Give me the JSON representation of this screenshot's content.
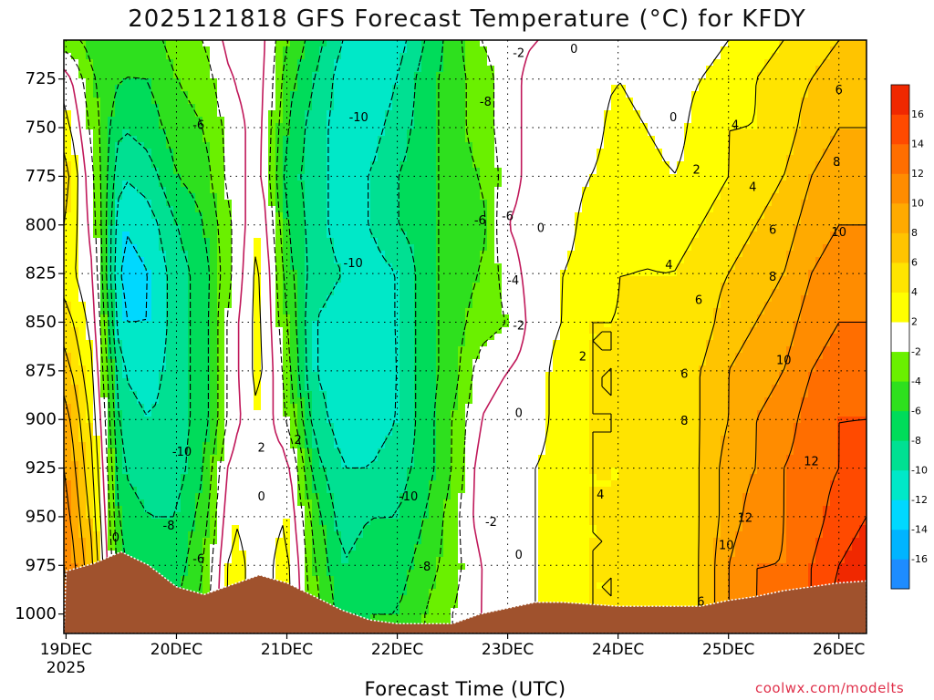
{
  "page": {
    "title": "2025121818 GFS Forecast Temperature (°C) for KFDY",
    "xlabel": "Forecast Time (UTC)",
    "credit": "coolwx.com/modelts"
  },
  "chart_data": {
    "type": "heatmap",
    "title": "2025121818 GFS Forecast Temperature (°C) for KFDY",
    "xlabel": "Forecast Time (UTC)",
    "ylabel": "",
    "x_ticks": [
      {
        "label": "19DEC",
        "sub": "2025",
        "day": 0
      },
      {
        "label": "20DEC",
        "sub": "",
        "day": 1
      },
      {
        "label": "21DEC",
        "sub": "",
        "day": 2
      },
      {
        "label": "22DEC",
        "sub": "",
        "day": 3
      },
      {
        "label": "23DEC",
        "sub": "",
        "day": 4
      },
      {
        "label": "24DEC",
        "sub": "",
        "day": 5
      },
      {
        "label": "25DEC",
        "sub": "",
        "day": 6
      },
      {
        "label": "26DEC",
        "sub": "",
        "day": 7
      }
    ],
    "xlim_days": [
      -0.02,
      7.25
    ],
    "y_ticks": [
      725,
      750,
      775,
      800,
      825,
      850,
      875,
      900,
      925,
      950,
      975,
      1000
    ],
    "ylim_hpa": [
      705,
      1010
    ],
    "y_inverted": true,
    "colorbar": {
      "bounds": [
        -18,
        -16,
        -14,
        -12,
        -10,
        -8,
        -6,
        -4,
        -2,
        2,
        4,
        6,
        8,
        10,
        12,
        14,
        16,
        18
      ],
      "tick_labels": [
        "-16",
        "-14",
        "-12",
        "-10",
        "-8",
        "-6",
        "-4",
        "-2",
        "2",
        "4",
        "6",
        "8",
        "10",
        "12",
        "14",
        "16"
      ],
      "colors": [
        "#1e8cff",
        "#00b4ff",
        "#00d8ff",
        "#00e8c8",
        "#00e092",
        "#00dc5a",
        "#2ee01e",
        "#6af000",
        "#ffffff",
        "#ffff00",
        "#ffe400",
        "#ffc400",
        "#ffaa00",
        "#ff8c00",
        "#ff6e00",
        "#ff4a00",
        "#f02800"
      ]
    },
    "ground_color": "#a0522d",
    "times_days": [
      0,
      0.25,
      0.5,
      0.75,
      1,
      1.25,
      1.5,
      1.75,
      2,
      2.25,
      2.5,
      2.75,
      3,
      3.25,
      3.5,
      3.75,
      4,
      4.25,
      4.5,
      4.75,
      5,
      5.25,
      5.5,
      5.75,
      6,
      6.25,
      6.5,
      6.75,
      7,
      7.25
    ],
    "surface_pressure_hpa": [
      978,
      974,
      968,
      975,
      986,
      990,
      985,
      980,
      984,
      991,
      998,
      1003,
      1005,
      1005,
      1005,
      1000,
      997,
      994,
      994,
      995,
      996,
      996,
      996,
      996,
      993,
      991,
      988,
      986,
      984,
      983
    ],
    "levels_hpa": [
      705,
      725,
      750,
      775,
      800,
      825,
      850,
      875,
      900,
      925,
      950,
      975,
      1000
    ],
    "temperature_c": [
      [
        -3,
        1,
        3,
        5,
        4,
        3,
        5,
        7,
        9,
        10,
        11,
        12,
        13
      ],
      [
        -5,
        -4,
        -3,
        -2,
        -1,
        0,
        1,
        2,
        3,
        4,
        5,
        6,
        7
      ],
      [
        -6,
        -6,
        -8,
        -10,
        -12,
        -13,
        -12,
        -10,
        -9,
        -8,
        -7,
        -6,
        -5
      ],
      [
        -5,
        -6,
        -7,
        -9,
        -11,
        -12,
        -12,
        -11,
        -10,
        -9,
        -8,
        -7,
        -6
      ],
      [
        -3,
        -4,
        -5,
        -6,
        -8,
        -9,
        -9,
        -9,
        -9,
        -9,
        -8,
        -7,
        -6
      ],
      [
        -2,
        -3,
        -4,
        -5,
        -6,
        -7,
        -7,
        -7,
        -7,
        -6,
        -5,
        -4,
        -3
      ],
      [
        1,
        0,
        -1,
        -1,
        -2,
        -2,
        -1,
        -1,
        -1,
        1,
        2,
        3,
        3
      ],
      [
        1,
        1,
        1,
        1,
        2,
        3,
        3,
        3,
        2,
        1,
        1,
        1,
        1
      ],
      [
        -4,
        -5,
        -6,
        -7,
        -6,
        -5,
        -4,
        -3,
        -2,
        1,
        2,
        3,
        3
      ],
      [
        -7,
        -8,
        -9,
        -9,
        -9,
        -9,
        -10,
        -10,
        -9,
        -7,
        -5,
        -4,
        -3
      ],
      [
        -10,
        -11,
        -11,
        -11,
        -11,
        -10,
        -11,
        -11,
        -11,
        -10,
        -9,
        -8,
        -7
      ],
      [
        -12,
        -12,
        -11,
        -10,
        -10,
        -11,
        -11,
        -12,
        -11,
        -10,
        -8,
        -7,
        -6
      ],
      [
        -11,
        -10,
        -9,
        -8,
        -8,
        -10,
        -10,
        -10,
        -10,
        -9,
        -8,
        -7,
        -6
      ],
      [
        -8,
        -7,
        -7,
        -7,
        -7,
        -7,
        -7,
        -7,
        -7,
        -7,
        -6,
        -5,
        -4
      ],
      [
        -5,
        -5,
        -5,
        -5,
        -5,
        -5,
        -5,
        -5,
        -4,
        -4,
        -3,
        -3,
        -2
      ],
      [
        -2,
        -3,
        -3,
        -4,
        -5,
        -4,
        -3,
        -1,
        0,
        1,
        1,
        0,
        0
      ],
      [
        -1,
        -1,
        -1,
        -1,
        0,
        -1,
        -2,
        0,
        1,
        1,
        1,
        1,
        1
      ],
      [
        0,
        1,
        1,
        1,
        1,
        1,
        1,
        1,
        1,
        2,
        2,
        2,
        2
      ],
      [
        0,
        1,
        1,
        1,
        1,
        2,
        2,
        3,
        3,
        3,
        3,
        3,
        3
      ],
      [
        1,
        1,
        1,
        2,
        3,
        3,
        4,
        4,
        4,
        4,
        4,
        4,
        4
      ],
      [
        1,
        2,
        3,
        3,
        3,
        4,
        4,
        4,
        4,
        4,
        4,
        4,
        4
      ],
      [
        1,
        1,
        2,
        3,
        4,
        4,
        5,
        5,
        5,
        5,
        5,
        5,
        5
      ],
      [
        1,
        1,
        1,
        2,
        3,
        4,
        5,
        5,
        5,
        5,
        5,
        5,
        5
      ],
      [
        1,
        2,
        3,
        3,
        4,
        5,
        5,
        6,
        6,
        6,
        6,
        6,
        6
      ],
      [
        2,
        3,
        4,
        4,
        5,
        6,
        7,
        8,
        8,
        9,
        9,
        10,
        10
      ],
      [
        3,
        4,
        4,
        5,
        6,
        7,
        8,
        9,
        10,
        10,
        11,
        12,
        12
      ],
      [
        4,
        5,
        5,
        6,
        7,
        8,
        9,
        10,
        11,
        12,
        12,
        12,
        13
      ],
      [
        5,
        6,
        7,
        8,
        9,
        10,
        11,
        12,
        13,
        13,
        13,
        14,
        14
      ],
      [
        6,
        7,
        8,
        9,
        10,
        11,
        12,
        13,
        14,
        14,
        15,
        16,
        17
      ],
      [
        6,
        7,
        8,
        9,
        10,
        11,
        12,
        13,
        14,
        15,
        16,
        17,
        18
      ]
    ],
    "contour_labels": [
      {
        "text": "-2",
        "day": 4.1,
        "hpa": 712
      },
      {
        "text": "0",
        "day": 4.6,
        "hpa": 710
      },
      {
        "text": "-6",
        "day": 1.2,
        "hpa": 749
      },
      {
        "text": "-10",
        "day": 2.65,
        "hpa": 745
      },
      {
        "text": "-8",
        "day": 3.8,
        "hpa": 737
      },
      {
        "text": "0",
        "day": 5.5,
        "hpa": 745
      },
      {
        "text": "4",
        "day": 6.06,
        "hpa": 749
      },
      {
        "text": "6",
        "day": 7.0,
        "hpa": 731
      },
      {
        "text": "2",
        "day": 5.71,
        "hpa": 772
      },
      {
        "text": "4",
        "day": 6.22,
        "hpa": 781
      },
      {
        "text": "8",
        "day": 6.98,
        "hpa": 768
      },
      {
        "text": "-6",
        "day": 3.75,
        "hpa": 798
      },
      {
        "text": "-6",
        "day": 4.0,
        "hpa": 796
      },
      {
        "text": "0",
        "day": 4.3,
        "hpa": 802
      },
      {
        "text": "6",
        "day": 6.4,
        "hpa": 803
      },
      {
        "text": "10",
        "day": 7.0,
        "hpa": 804
      },
      {
        "text": "-10",
        "day": 2.6,
        "hpa": 820
      },
      {
        "text": "4",
        "day": 5.46,
        "hpa": 821
      },
      {
        "text": "8",
        "day": 6.4,
        "hpa": 827
      },
      {
        "text": "-4",
        "day": 4.05,
        "hpa": 829
      },
      {
        "text": "6",
        "day": 5.73,
        "hpa": 839
      },
      {
        "text": "-2",
        "day": 4.1,
        "hpa": 852
      },
      {
        "text": "2",
        "day": 4.68,
        "hpa": 868
      },
      {
        "text": "10",
        "day": 6.5,
        "hpa": 870
      },
      {
        "text": "6",
        "day": 5.6,
        "hpa": 877
      },
      {
        "text": "0",
        "day": 4.1,
        "hpa": 897
      },
      {
        "text": "8",
        "day": 5.6,
        "hpa": 901
      },
      {
        "text": "-10",
        "day": 1.05,
        "hpa": 917
      },
      {
        "text": "2",
        "day": 1.77,
        "hpa": 915
      },
      {
        "text": "2",
        "day": 2.1,
        "hpa": 911
      },
      {
        "text": "12",
        "day": 6.75,
        "hpa": 922
      },
      {
        "text": "0",
        "day": 1.77,
        "hpa": 940
      },
      {
        "text": "-10",
        "day": 3.1,
        "hpa": 940
      },
      {
        "text": "4",
        "day": 4.84,
        "hpa": 939
      },
      {
        "text": "-8",
        "day": 0.93,
        "hpa": 955
      },
      {
        "text": "-2",
        "day": 3.85,
        "hpa": 953
      },
      {
        "text": "12",
        "day": 6.15,
        "hpa": 951
      },
      {
        "text": "0",
        "day": 0.45,
        "hpa": 961
      },
      {
        "text": "10",
        "day": 5.98,
        "hpa": 965
      },
      {
        "text": "-6",
        "day": 1.2,
        "hpa": 972
      },
      {
        "text": "0",
        "day": 4.1,
        "hpa": 970
      },
      {
        "text": "-8",
        "day": 3.25,
        "hpa": 976
      },
      {
        "text": "6",
        "day": 5.75,
        "hpa": 994
      }
    ]
  }
}
